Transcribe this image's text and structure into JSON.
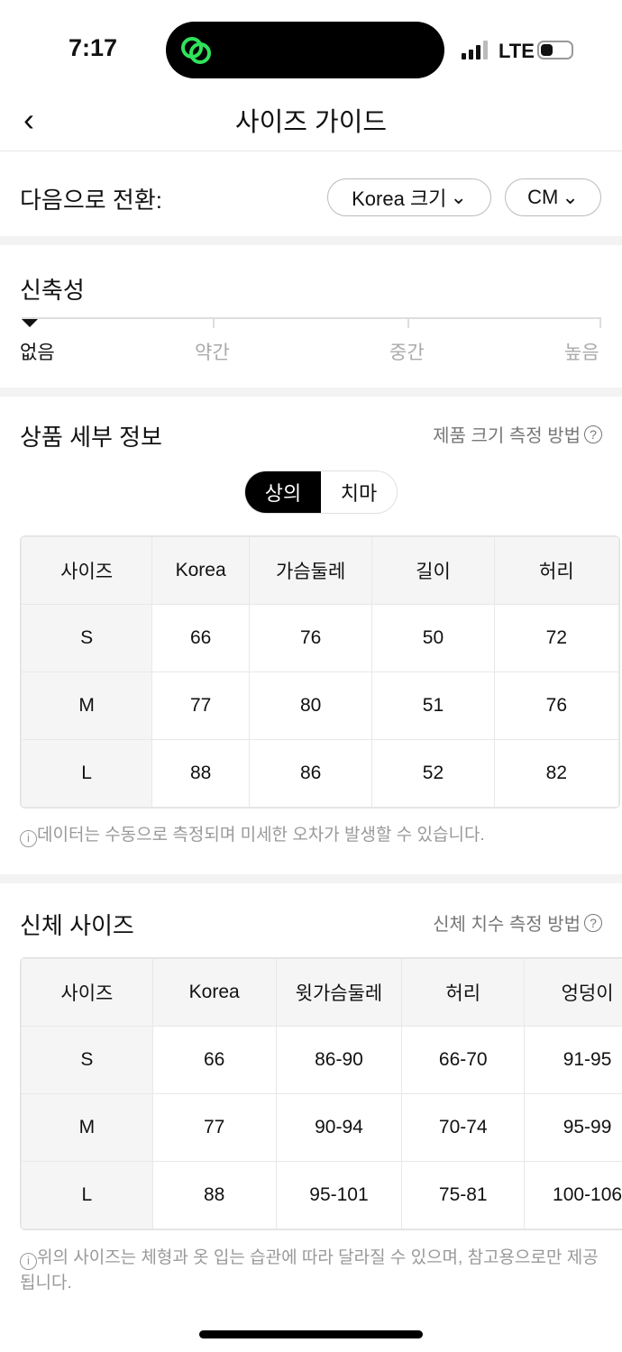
{
  "status": {
    "time": "7:17",
    "network": "LTE"
  },
  "header": {
    "title": "사이즈 가이드"
  },
  "switch": {
    "label": "다음으로 전환:",
    "size_system": "Korea 크기",
    "unit": "CM"
  },
  "stretch": {
    "title": "신축성",
    "levels": [
      "없음",
      "약간",
      "중간",
      "높음"
    ],
    "selected": "없음"
  },
  "product": {
    "title": "상품 세부 정보",
    "link": "제품 크기 측정 방법",
    "tabs": [
      "상의",
      "치마"
    ],
    "active_tab": "상의",
    "columns": [
      "사이즈",
      "Korea",
      "가슴둘레",
      "길이",
      "허리"
    ],
    "rows": [
      [
        "S",
        "66",
        "76",
        "50",
        "72"
      ],
      [
        "M",
        "77",
        "80",
        "51",
        "76"
      ],
      [
        "L",
        "88",
        "86",
        "52",
        "82"
      ]
    ],
    "note": "데이터는 수동으로 측정되며 미세한 오차가 발생할 수 있습니다."
  },
  "body": {
    "title": "신체 사이즈",
    "link": "신체 치수 측정 방법",
    "columns": [
      "사이즈",
      "Korea",
      "윗가슴둘레",
      "허리",
      "엉덩이"
    ],
    "rows": [
      [
        "S",
        "66",
        "86-90",
        "66-70",
        "91-95"
      ],
      [
        "M",
        "77",
        "90-94",
        "70-74",
        "95-99"
      ],
      [
        "L",
        "88",
        "95-101",
        "75-81",
        "100-106"
      ]
    ],
    "note": "위의 사이즈는 체형과 옷 입는 습관에 따라 달라질 수 있으며, 참고용으로만 제공됩니다."
  },
  "colors": {
    "accent": "#000000",
    "island_icon": "#2fe35b"
  }
}
